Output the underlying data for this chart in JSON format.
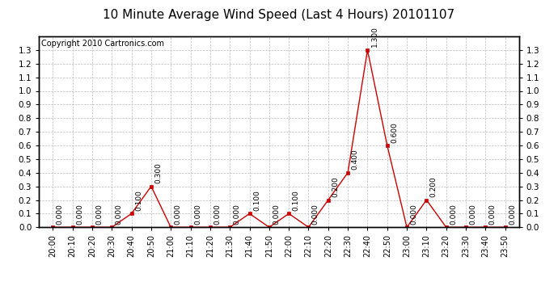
{
  "title": "10 Minute Average Wind Speed (Last 4 Hours) 20101107",
  "copyright": "Copyright 2010 Cartronics.com",
  "x_labels": [
    "20:00",
    "20:10",
    "20:20",
    "20:30",
    "20:40",
    "20:50",
    "21:00",
    "21:10",
    "21:20",
    "21:30",
    "21:40",
    "21:50",
    "22:00",
    "22:10",
    "22:20",
    "22:30",
    "22:40",
    "22:50",
    "23:00",
    "23:10",
    "23:20",
    "23:30",
    "23:40",
    "23:50"
  ],
  "values": [
    0.0,
    0.0,
    0.0,
    0.0,
    0.1,
    0.3,
    0.0,
    0.0,
    0.0,
    0.0,
    0.1,
    0.0,
    0.1,
    0.0,
    0.2,
    0.4,
    1.3,
    0.6,
    0.0,
    0.2,
    0.0,
    0.0,
    0.0,
    0.0
  ],
  "ylim": [
    0.0,
    1.4
  ],
  "yticks": [
    0.0,
    0.1,
    0.2,
    0.3,
    0.4,
    0.5,
    0.6,
    0.7,
    0.8,
    0.9,
    1.0,
    1.1,
    1.2,
    1.3
  ],
  "line_color": "#cc0000",
  "marker_color": "#cc0000",
  "bg_color": "#ffffff",
  "grid_color": "#bbbbbb",
  "title_fontsize": 11,
  "annotation_fontsize": 6.5,
  "copyright_fontsize": 7,
  "tick_fontsize": 7,
  "ytick_fontsize": 7.5
}
